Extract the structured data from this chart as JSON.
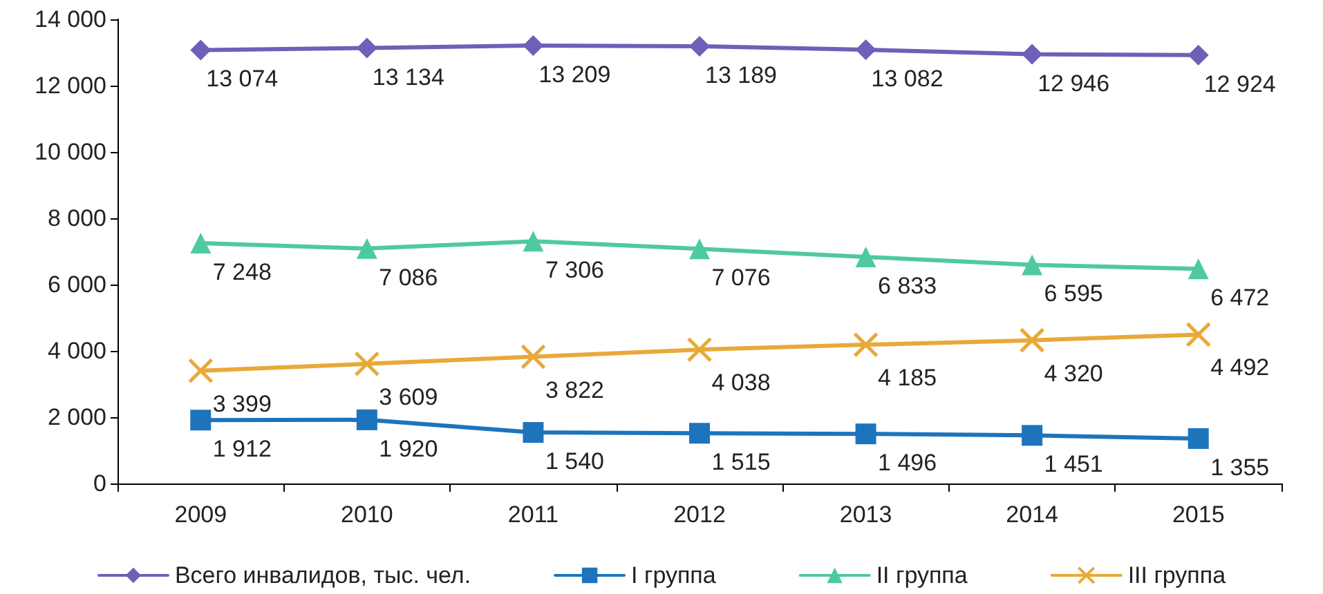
{
  "chart_data": {
    "type": "line",
    "categories": [
      "2009",
      "2010",
      "2011",
      "2012",
      "2013",
      "2014",
      "2015"
    ],
    "series": [
      {
        "name": "Всего инвалидов, тыс. чел.",
        "color": "#6e5fb8",
        "marker": "diamond",
        "values": [
          13074,
          13134,
          13209,
          13189,
          13082,
          12946,
          12924
        ],
        "value_labels": [
          "13 074",
          "13 134",
          "13 209",
          "13 189",
          "13 082",
          "12 946",
          "12 924"
        ]
      },
      {
        "name": "I группа",
        "color": "#1d74bd",
        "marker": "square",
        "values": [
          1912,
          1920,
          1540,
          1515,
          1496,
          1451,
          1355
        ],
        "value_labels": [
          "1 912",
          "1 920",
          "1 540",
          "1 515",
          "1 496",
          "1 451",
          "1 355"
        ]
      },
      {
        "name": "II группа",
        "color": "#4fc9a0",
        "marker": "triangle",
        "values": [
          7248,
          7086,
          7306,
          7076,
          6833,
          6595,
          6472
        ],
        "value_labels": [
          "7 248",
          "7 086",
          "7 306",
          "7 076",
          "6 833",
          "6 595",
          "6 472"
        ]
      },
      {
        "name": "III группа",
        "color": "#e8a93a",
        "marker": "cross",
        "values": [
          3399,
          3609,
          3822,
          4038,
          4185,
          4320,
          4492
        ],
        "value_labels": [
          "3 399",
          "3 609",
          "3 822",
          "4 038",
          "4 185",
          "4 320",
          "4 492"
        ]
      }
    ],
    "ylim": [
      0,
      14000
    ],
    "yticks": [
      {
        "value": 0,
        "label": "0"
      },
      {
        "value": 2000,
        "label": "2 000"
      },
      {
        "value": 4000,
        "label": "4 000"
      },
      {
        "value": 6000,
        "label": "6 000"
      },
      {
        "value": 8000,
        "label": "8 000"
      },
      {
        "value": 10000,
        "label": "10 000"
      },
      {
        "value": 12000,
        "label": "12 000"
      },
      {
        "value": 14000,
        "label": "14 000"
      }
    ],
    "grid": false,
    "legend": "bottom",
    "line_style": "solid"
  }
}
